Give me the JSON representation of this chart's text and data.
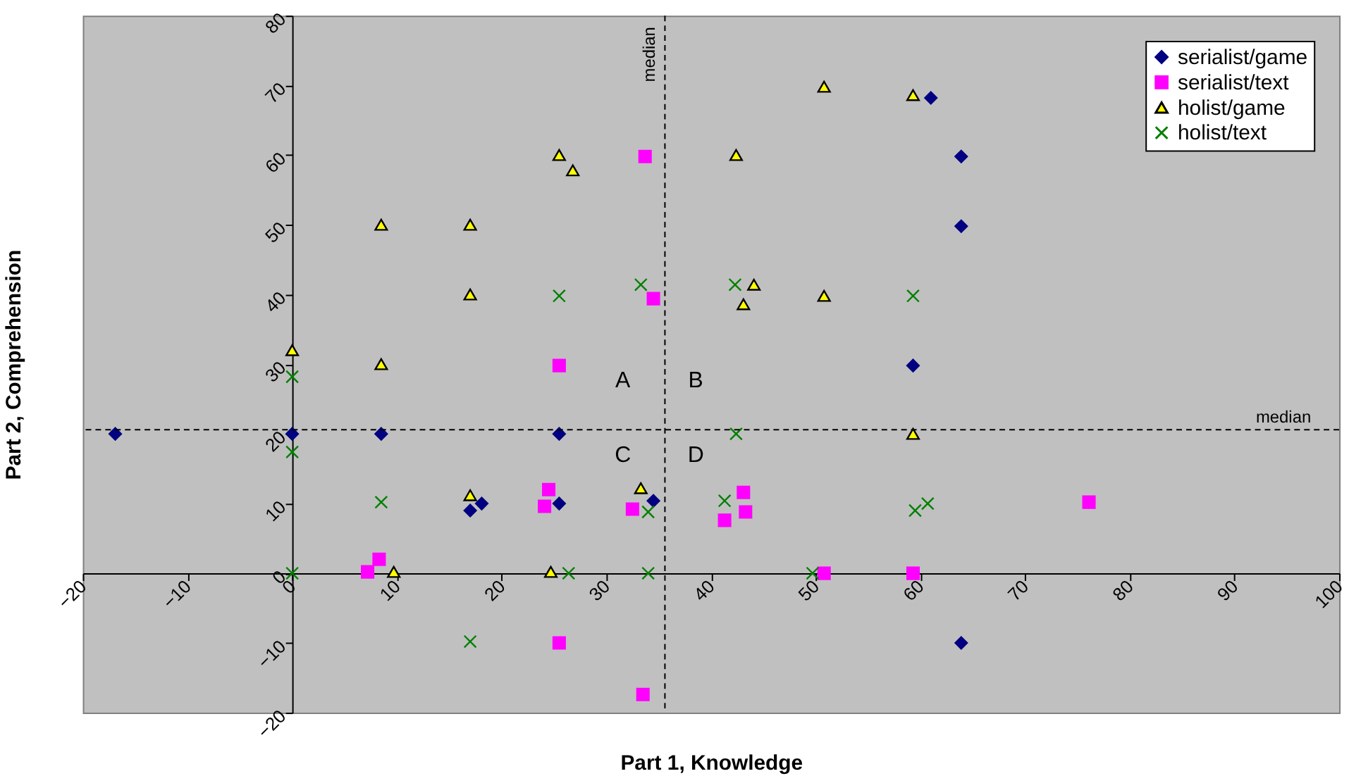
{
  "chart_data": {
    "type": "scatter",
    "xlabel": "Part 1, Knowledge",
    "ylabel": "Part 2, Comprehension",
    "xlim": [
      -20,
      100
    ],
    "ylim": [
      -20,
      80
    ],
    "xticks": [
      -20,
      -10,
      0,
      10,
      20,
      30,
      40,
      50,
      60,
      70,
      80,
      90,
      100
    ],
    "yticks": [
      -20,
      -10,
      0,
      10,
      20,
      30,
      40,
      50,
      60,
      70,
      80
    ],
    "grid": false,
    "legend": "top right",
    "series": [
      {
        "name": "serialist/game",
        "color": "#000080",
        "marker": "diamond",
        "x": [
          -16.9,
          0,
          8.5,
          25.5,
          17,
          18.1,
          25.5,
          34.5,
          59.3,
          61,
          63.9,
          63.9,
          63.9
        ],
        "values": [
          20,
          20,
          20,
          20,
          9,
          10,
          10,
          10.4,
          29.8,
          68.2,
          59.8,
          49.8,
          -10
        ]
      },
      {
        "name": "serialist/text",
        "color": "#ff00ff",
        "marker": "square",
        "x": [
          33.7,
          34.5,
          25.5,
          24.5,
          24.1,
          32.5,
          33.5,
          25.5,
          8.3,
          7.2,
          43.1,
          43.3,
          41.3,
          50.8,
          59.3,
          76.1
        ],
        "values": [
          59.8,
          39.4,
          29.8,
          12,
          9.6,
          9.2,
          -17.4,
          -10,
          2,
          0.2,
          11.6,
          8.8,
          7.6,
          0,
          0,
          10.2
        ]
      },
      {
        "name": "holist/game",
        "color": "#ffff00",
        "marker": "triangle",
        "x": [
          50.8,
          59.3,
          25.5,
          26.8,
          42.4,
          8.5,
          17,
          17,
          0,
          8.5,
          44.1,
          43.1,
          50.8,
          59.3,
          17,
          33.3,
          9.7,
          24.7
        ],
        "values": [
          69.8,
          68.6,
          60,
          57.8,
          60,
          50,
          50,
          40,
          32,
          30,
          41.4,
          38.6,
          39.8,
          20,
          11.2,
          12.2,
          0.2,
          0.2
        ]
      },
      {
        "name": "holist/text",
        "color": "#008000",
        "marker": "cross",
        "x": [
          0,
          0,
          8.5,
          0,
          17,
          25.5,
          33.3,
          42.3,
          59.3,
          42.4,
          41.3,
          34,
          26.4,
          34,
          49.7,
          59.5,
          60.7
        ],
        "values": [
          28.2,
          17.4,
          10.2,
          0,
          -9.8,
          39.8,
          41.4,
          41.4,
          39.8,
          20,
          10.4,
          8.8,
          0,
          0,
          0,
          9,
          10
        ]
      }
    ],
    "ref_lines": [
      {
        "axis": "x",
        "value": 35.6,
        "label": "median",
        "line_style": "dashed",
        "color": "#000000"
      },
      {
        "axis": "y",
        "value": 20.6,
        "label": "median",
        "line_style": "dashed",
        "color": "#000000"
      }
    ],
    "annotations": [
      "A",
      "B",
      "C",
      "D"
    ]
  }
}
